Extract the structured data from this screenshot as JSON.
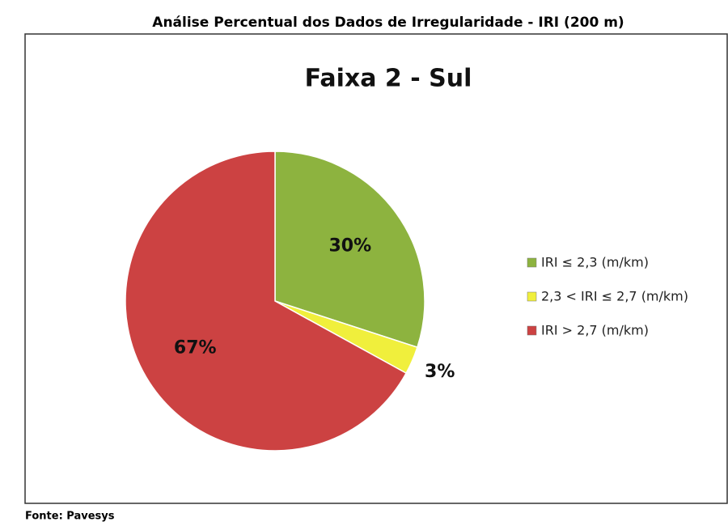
{
  "chart_data": {
    "type": "pie",
    "header": "Análise Percentual dos Dados de Irregularidade - IRI (200 m)",
    "title": "Faixa 2 - Sul",
    "categories": [
      "IRI ≤ 2,3 (m/km)",
      "2,3 < IRI ≤ 2,7 (m/km)",
      "IRI > 2,7 (m/km)"
    ],
    "values": [
      30,
      3,
      67
    ],
    "value_labels": [
      "30%",
      "3%",
      "67%"
    ],
    "colors": [
      "#8db33f",
      "#f0ef3c",
      "#cc4242"
    ],
    "legend": "right",
    "source": "Fonte: Pavesys"
  }
}
